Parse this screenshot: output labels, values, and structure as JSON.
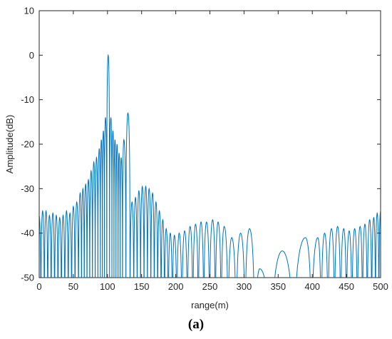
{
  "caption": "(a)",
  "chart_data": {
    "type": "line",
    "title": "",
    "xlabel": "range(m)",
    "ylabel": "Amplitude(dB)",
    "xlim": [
      0,
      500
    ],
    "ylim": [
      -50,
      10
    ],
    "xticks": [
      0,
      50,
      100,
      150,
      200,
      250,
      300,
      350,
      400,
      450,
      500
    ],
    "yticks": [
      10,
      0,
      -10,
      -20,
      -30,
      -40,
      -50
    ],
    "grid": false,
    "line_color": "#0072BD",
    "series": [
      {
        "lobe_peaks": [
          {
            "x": 0,
            "y": -36
          },
          {
            "x": 5,
            "y": -35
          },
          {
            "x": 10,
            "y": -35
          },
          {
            "x": 15,
            "y": -36
          },
          {
            "x": 20,
            "y": -35.5
          },
          {
            "x": 25,
            "y": -36
          },
          {
            "x": 30,
            "y": -36.5
          },
          {
            "x": 35,
            "y": -36
          },
          {
            "x": 40,
            "y": -35
          },
          {
            "x": 45,
            "y": -35.5
          },
          {
            "x": 50,
            "y": -34
          },
          {
            "x": 55,
            "y": -33
          },
          {
            "x": 60,
            "y": -31
          },
          {
            "x": 64,
            "y": -30
          },
          {
            "x": 68,
            "y": -29
          },
          {
            "x": 72,
            "y": -28
          },
          {
            "x": 76,
            "y": -26
          },
          {
            "x": 80,
            "y": -24
          },
          {
            "x": 84,
            "y": -23
          },
          {
            "x": 88,
            "y": -21
          },
          {
            "x": 91,
            "y": -19
          },
          {
            "x": 94,
            "y": -17
          },
          {
            "x": 97,
            "y": -14
          },
          {
            "x": 101,
            "y": 0
          },
          {
            "x": 105,
            "y": -14
          },
          {
            "x": 108,
            "y": -17
          },
          {
            "x": 111,
            "y": -19
          },
          {
            "x": 114,
            "y": -20
          },
          {
            "x": 117,
            "y": -22
          },
          {
            "x": 120,
            "y": -23
          },
          {
            "x": 124,
            "y": -19
          },
          {
            "x": 130,
            "y": -13
          },
          {
            "x": 136,
            "y": -33
          },
          {
            "x": 141,
            "y": -32
          },
          {
            "x": 146,
            "y": -30.5
          },
          {
            "x": 151,
            "y": -29.5
          },
          {
            "x": 156,
            "y": -29.5
          },
          {
            "x": 161,
            "y": -30
          },
          {
            "x": 166,
            "y": -31
          },
          {
            "x": 171,
            "y": -33
          },
          {
            "x": 176,
            "y": -35
          },
          {
            "x": 181,
            "y": -37
          },
          {
            "x": 186,
            "y": -39
          },
          {
            "x": 192,
            "y": -40
          },
          {
            "x": 198,
            "y": -40.5
          },
          {
            "x": 205,
            "y": -40
          },
          {
            "x": 213,
            "y": -39.5
          },
          {
            "x": 221,
            "y": -38.5
          },
          {
            "x": 229,
            "y": -38
          },
          {
            "x": 237,
            "y": -37.5
          },
          {
            "x": 245,
            "y": -37.5
          },
          {
            "x": 254,
            "y": -37
          },
          {
            "x": 262,
            "y": -37.5
          },
          {
            "x": 271,
            "y": -38.5
          },
          {
            "x": 282,
            "y": -41
          },
          {
            "x": 295,
            "y": -40
          },
          {
            "x": 308,
            "y": -39
          },
          {
            "x": 323,
            "y": -48
          },
          {
            "x": 356,
            "y": -44
          },
          {
            "x": 390,
            "y": -41
          },
          {
            "x": 408,
            "y": -41
          },
          {
            "x": 418,
            "y": -40
          },
          {
            "x": 428,
            "y": -39
          },
          {
            "x": 437,
            "y": -38.5
          },
          {
            "x": 446,
            "y": -39
          },
          {
            "x": 454,
            "y": -39.5
          },
          {
            "x": 462,
            "y": -39
          },
          {
            "x": 470,
            "y": -38.5
          },
          {
            "x": 477,
            "y": -38
          },
          {
            "x": 484,
            "y": -37
          },
          {
            "x": 490,
            "y": -36.5
          },
          {
            "x": 495,
            "y": -35.5
          },
          {
            "x": 500,
            "y": -35
          }
        ]
      }
    ]
  }
}
